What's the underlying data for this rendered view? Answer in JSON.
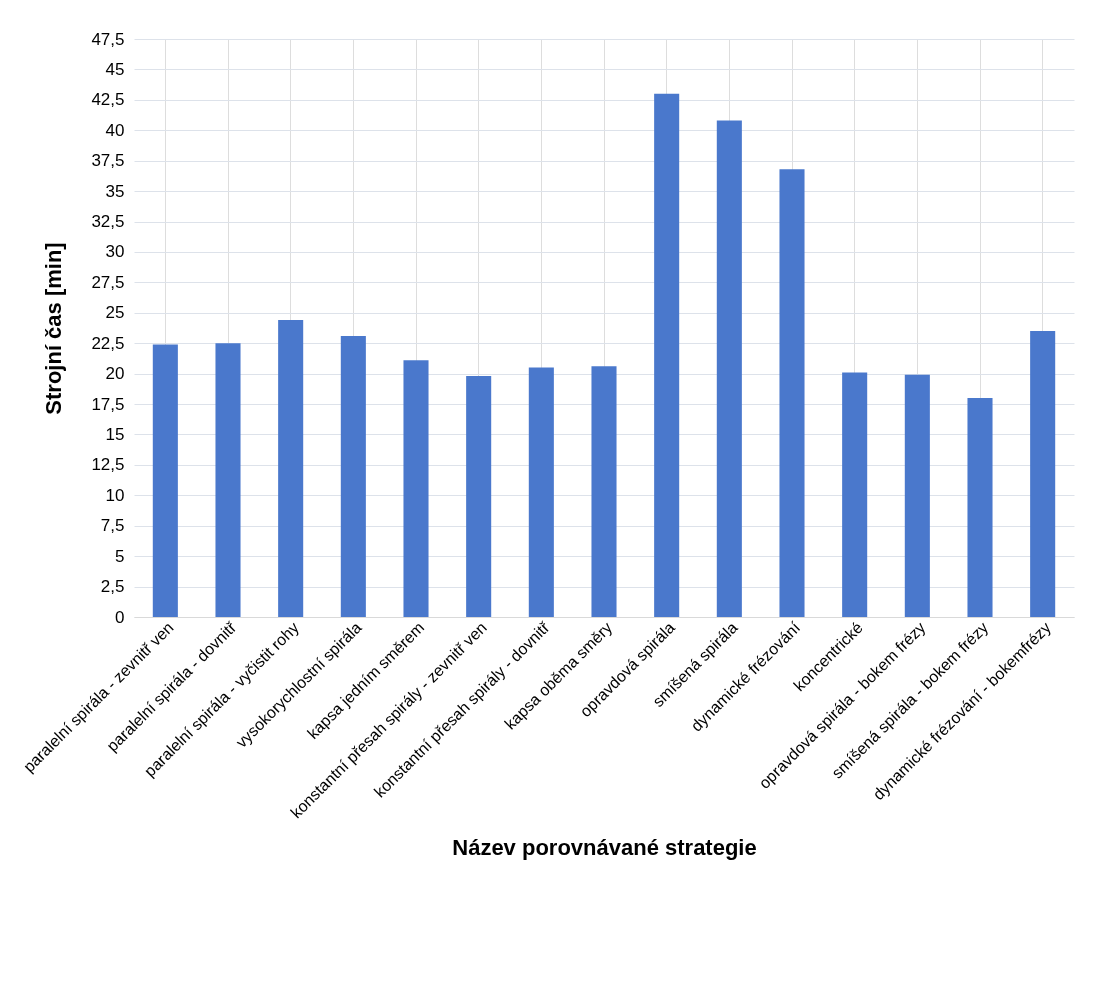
{
  "chart_data": {
    "type": "bar",
    "xlabel": "Název porovnávané strategie",
    "ylabel": "Strojní čas [min]",
    "categories": [
      "paralelní spirála - zevnitř ven",
      "paralelní spirála - dovnitř",
      "paralelní spirála - vyčistit rohy",
      "vysokorychlostní spirála",
      "kapsa jedním směrem",
      "konstantní přesah spirály - zevnitř ven",
      "konstantní přesah spirály - dovnitř",
      "kapsa oběma směry",
      "opravdová spirála",
      "smíšená spirála",
      "dynamické frézování",
      "koncentrické",
      "opravdová spirála - bokem frézy",
      "smíšená spirála - bokem frézy",
      "dynamické frézování - bokemfrézy"
    ],
    "values": [
      22.4,
      22.5,
      24.4,
      23.1,
      21.1,
      19.8,
      20.5,
      20.6,
      43.0,
      40.8,
      36.8,
      20.1,
      19.9,
      18.0,
      23.5
    ],
    "color": "#4a78cc",
    "ylim": [
      0,
      47.5
    ],
    "yticks": [
      0,
      {
        "value": 2.5,
        "label": "2,5"
      },
      5,
      {
        "value": 7.5,
        "label": "7,5"
      },
      10,
      {
        "value": 12.5,
        "label": "12,5"
      },
      15,
      {
        "value": 17.5,
        "label": "17,5"
      },
      20,
      {
        "value": 22.5,
        "label": "22,5"
      },
      25,
      {
        "value": 27.5,
        "label": "27,5"
      },
      30,
      {
        "value": 32.5,
        "label": "32,5"
      },
      35,
      {
        "value": 37.5,
        "label": "37,5"
      },
      40,
      {
        "value": 42.5,
        "label": "42,5"
      },
      45,
      {
        "value": 47.5,
        "label": "47,5"
      }
    ],
    "grid": true
  }
}
